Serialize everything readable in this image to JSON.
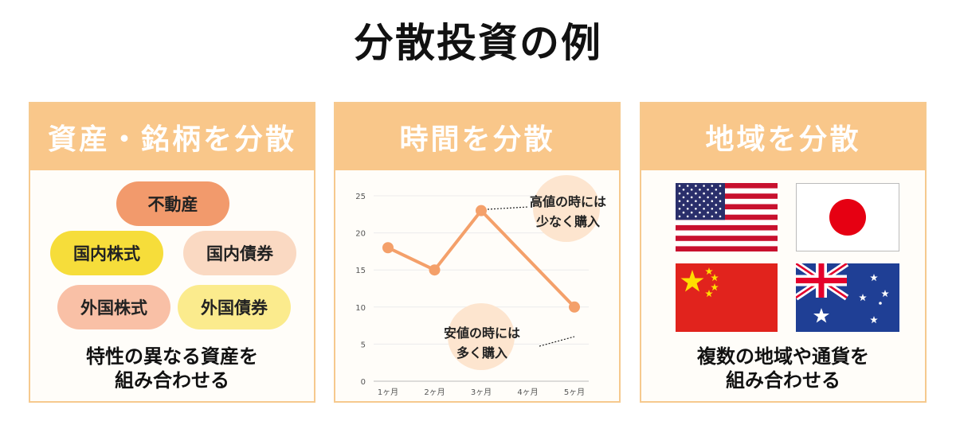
{
  "title": "分散投資の例",
  "panels": {
    "assets": {
      "header": "資産・銘柄を分散",
      "pills": [
        {
          "label": "不動産",
          "color": "#f29a6c"
        },
        {
          "label": "国内株式",
          "color": "#f6dd3a"
        },
        {
          "label": "国内債券",
          "color": "#fad9c2"
        },
        {
          "label": "外国株式",
          "color": "#f9c0a6"
        },
        {
          "label": "外国債券",
          "color": "#fbeb8d"
        }
      ],
      "caption_line1": "特性の異なる資産を",
      "caption_line2": "組み合わせる"
    },
    "time": {
      "header": "時間を分散",
      "annotation_high_line1": "高値の時には",
      "annotation_high_line2": "少なく購入",
      "annotation_low_line1": "安値の時には",
      "annotation_low_line2": "多く購入"
    },
    "region": {
      "header": "地域を分散",
      "flags": [
        "us-flag",
        "japan-flag",
        "china-flag",
        "australia-flag"
      ],
      "caption_line1": "複数の地域や通貨を",
      "caption_line2": "組み合わせる"
    }
  },
  "colors": {
    "header_bg": "#f9c78a",
    "line": "#f4a06a",
    "bubble": "#fde5cf"
  },
  "chart_data": {
    "type": "line",
    "categories": [
      "1ヶ月",
      "2ヶ月",
      "3ヶ月",
      "4ヶ月",
      "5ヶ月"
    ],
    "x": [
      1,
      2,
      3,
      5
    ],
    "values": [
      18,
      15,
      23,
      10
    ],
    "ylim": [
      0,
      25
    ],
    "yticks": [
      0,
      5,
      10,
      15,
      20,
      25
    ],
    "grid": true,
    "title": "",
    "xlabel": "",
    "ylabel": ""
  }
}
